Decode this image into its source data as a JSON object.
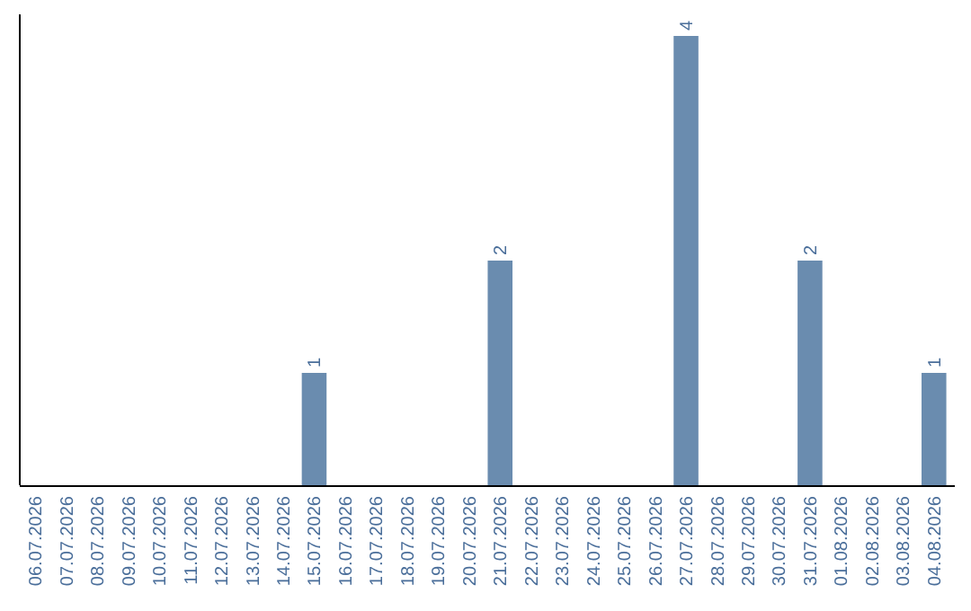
{
  "chart_data": {
    "type": "bar",
    "categories": [
      "06.07.2026",
      "07.07.2026",
      "08.07.2026",
      "09.07.2026",
      "10.07.2026",
      "11.07.2026",
      "12.07.2026",
      "13.07.2026",
      "14.07.2026",
      "15.07.2026",
      "16.07.2026",
      "17.07.2026",
      "18.07.2026",
      "19.07.2026",
      "20.07.2026",
      "21.07.2026",
      "22.07.2026",
      "23.07.2026",
      "24.07.2026",
      "25.07.2026",
      "26.07.2026",
      "27.07.2026",
      "28.07.2026",
      "29.07.2026",
      "30.07.2026",
      "31.07.2026",
      "01.08.2026",
      "02.08.2026",
      "03.08.2026",
      "04.08.2026"
    ],
    "values": [
      0,
      0,
      0,
      0,
      0,
      0,
      0,
      0,
      0,
      1,
      0,
      0,
      0,
      0,
      0,
      2,
      0,
      0,
      0,
      0,
      0,
      4,
      0,
      0,
      0,
      2,
      0,
      0,
      0,
      1
    ],
    "value_labels": [
      null,
      null,
      null,
      null,
      null,
      null,
      null,
      null,
      null,
      "1",
      null,
      null,
      null,
      null,
      null,
      "2",
      null,
      null,
      null,
      null,
      null,
      "4",
      null,
      null,
      null,
      "2",
      null,
      null,
      null,
      "1"
    ],
    "color": "#6a8caf",
    "tick_labels": "x"
  }
}
